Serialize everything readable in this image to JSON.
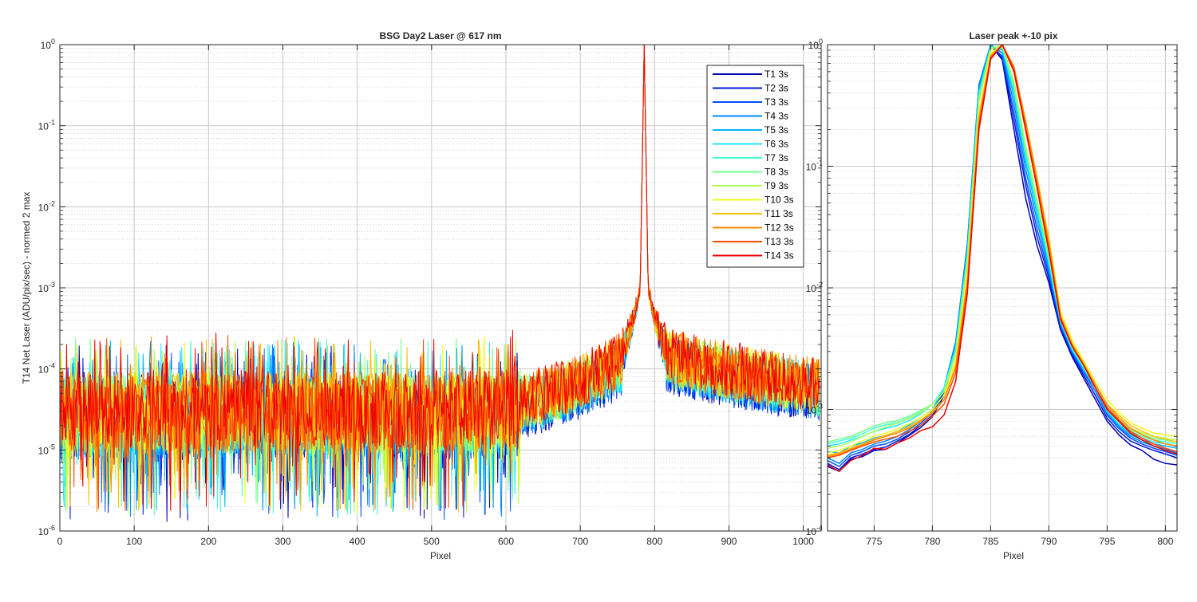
{
  "colors": {
    "series": [
      "#0000b0",
      "#0018e0",
      "#0050ff",
      "#0088ff",
      "#00b8ff",
      "#20e8ff",
      "#40ffd8",
      "#70ff90",
      "#b0ff50",
      "#f0ff20",
      "#ffc000",
      "#ff8800",
      "#ff4800",
      "#f00000"
    ],
    "grid": "#c8c8c8",
    "axis": "#262626"
  },
  "chart_data": [
    {
      "type": "line",
      "title": "BSG  Day2 Laser @ 617 nm",
      "xlabel": "Pixel",
      "ylabel": "T14 Net Laser (ADU/pix/sec) - normed 2 max",
      "yscale": "log",
      "xlim": [
        0,
        1024
      ],
      "ylim": [
        1e-06,
        1
      ],
      "xticks": [
        0,
        100,
        200,
        300,
        400,
        500,
        600,
        700,
        800,
        900,
        1000
      ],
      "xtick_labels": [
        "0",
        "100",
        "200",
        "300",
        "400",
        "500",
        "600",
        "700",
        "800",
        "900",
        "1000"
      ],
      "yticks": [
        -6,
        -5,
        -4,
        -3,
        -2,
        -1,
        0
      ],
      "ytick_labels": [
        {
          "base": "10",
          "exp": "-6"
        },
        {
          "base": "10",
          "exp": "-5"
        },
        {
          "base": "10",
          "exp": "-4"
        },
        {
          "base": "10",
          "exp": "-3"
        },
        {
          "base": "10",
          "exp": "-2"
        },
        {
          "base": "10",
          "exp": "-1"
        },
        {
          "base": "10",
          "exp": "0"
        }
      ],
      "grid": true,
      "legend_position": "top-right",
      "series_names": [
        "T1 3s",
        "T2 3s",
        "T3 3s",
        "T4 3s",
        "T5 3s",
        "T6 3s",
        "T7 3s",
        "T8 3s",
        "T9 3s",
        "T10 3s",
        "T11 3s",
        "T12 3s",
        "T13 3s",
        "T14 3s"
      ],
      "peak_pixel": 786,
      "noise_floor_description_values": {
        "left_baseline": 3.5e-05,
        "near_peak_baseline": 0.0002,
        "right_baseline": 6e-05
      }
    },
    {
      "type": "line",
      "title": "Laser peak +-10 pix",
      "xlabel": "Pixel",
      "ylabel": "",
      "yscale": "log",
      "xlim": [
        771,
        801
      ],
      "ylim": [
        0.0001,
        1
      ],
      "xticks": [
        775,
        780,
        785,
        790,
        795,
        800
      ],
      "xtick_labels": [
        "775",
        "780",
        "785",
        "790",
        "795",
        "800"
      ],
      "yticks": [
        -4,
        -3,
        -2,
        -1,
        0
      ],
      "ytick_labels": [
        {
          "base": "10",
          "exp": "-4"
        },
        {
          "base": "10",
          "exp": "-3"
        },
        {
          "base": "10",
          "exp": "-2"
        },
        {
          "base": "10",
          "exp": "-1"
        },
        {
          "base": "10",
          "exp": "0"
        }
      ],
      "grid": true,
      "x": [
        771,
        772,
        773,
        774,
        775,
        776,
        777,
        778,
        779,
        780,
        781,
        782,
        783,
        784,
        785,
        786,
        787,
        788,
        789,
        790,
        791,
        792,
        793,
        794,
        795,
        796,
        797,
        798,
        799,
        800,
        801
      ],
      "series": [
        {
          "name": "T1 3s",
          "values": [
            0.00034,
            0.00031,
            0.00039,
            0.00041,
            0.00046,
            0.00047,
            0.00053,
            0.00061,
            0.00071,
            0.00087,
            0.0013,
            0.0032,
            0.02,
            0.42,
            1.0,
            0.75,
            0.2,
            0.055,
            0.022,
            0.011,
            0.0045,
            0.0027,
            0.0018,
            0.0012,
            0.0008,
            0.00062,
            0.00051,
            0.00046,
            0.00039,
            0.00036,
            0.00035
          ]
        },
        {
          "name": "T2 3s",
          "values": [
            0.00036,
            0.00032,
            0.0004,
            0.00043,
            0.00047,
            0.00049,
            0.00055,
            0.00062,
            0.00074,
            0.0009,
            0.0014,
            0.0034,
            0.022,
            0.45,
            1.0,
            0.78,
            0.24,
            0.07,
            0.026,
            0.012,
            0.0048,
            0.0028,
            0.0019,
            0.0013,
            0.00085,
            0.00066,
            0.00055,
            0.0005,
            0.00046,
            0.00043,
            0.0004
          ]
        },
        {
          "name": "T3 3s",
          "values": [
            0.00038,
            0.00034,
            0.00042,
            0.00045,
            0.0005,
            0.00052,
            0.00057,
            0.00065,
            0.00077,
            0.00094,
            0.0015,
            0.0036,
            0.023,
            0.47,
            1.0,
            0.8,
            0.28,
            0.08,
            0.03,
            0.013,
            0.0049,
            0.0029,
            0.002,
            0.0014,
            0.0009,
            0.0007,
            0.00058,
            0.00052,
            0.00048,
            0.00045,
            0.00042
          ]
        },
        {
          "name": "T4 3s",
          "values": [
            0.0004,
            0.00036,
            0.00044,
            0.00047,
            0.00052,
            0.00055,
            0.0006,
            0.00068,
            0.0008,
            0.00097,
            0.0015,
            0.0035,
            0.022,
            0.46,
            1.0,
            0.85,
            0.33,
            0.095,
            0.035,
            0.014,
            0.005,
            0.003,
            0.0021,
            0.0014,
            0.00093,
            0.00072,
            0.0006,
            0.00054,
            0.0005,
            0.00047,
            0.00044
          ]
        },
        {
          "name": "T5 3s",
          "values": [
            0.00045,
            0.00044,
            0.0005,
            0.00053,
            0.00058,
            0.00061,
            0.00066,
            0.00074,
            0.00086,
            0.001,
            0.0015,
            0.0033,
            0.02,
            0.42,
            0.98,
            0.9,
            0.38,
            0.11,
            0.04,
            0.015,
            0.0052,
            0.0031,
            0.0021,
            0.0015,
            0.00095,
            0.00074,
            0.00062,
            0.00056,
            0.00052,
            0.0005,
            0.00048
          ]
        },
        {
          "name": "T6 3s",
          "values": [
            0.0005,
            0.00052,
            0.00056,
            0.0006,
            0.00066,
            0.0007,
            0.00074,
            0.00081,
            0.00092,
            0.0011,
            0.0015,
            0.0032,
            0.019,
            0.4,
            0.96,
            0.93,
            0.41,
            0.12,
            0.043,
            0.016,
            0.0053,
            0.0031,
            0.0022,
            0.0015,
            0.00097,
            0.00076,
            0.00064,
            0.00058,
            0.00054,
            0.00052,
            0.0005
          ]
        },
        {
          "name": "T7 3s",
          "values": [
            0.00052,
            0.00055,
            0.00058,
            0.00063,
            0.0007,
            0.00075,
            0.00078,
            0.00085,
            0.00095,
            0.0011,
            0.0015,
            0.003,
            0.018,
            0.38,
            0.95,
            0.95,
            0.44,
            0.13,
            0.046,
            0.017,
            0.0054,
            0.0032,
            0.0022,
            0.0015,
            0.001,
            0.00079,
            0.00066,
            0.0006,
            0.00056,
            0.00054,
            0.00052
          ]
        },
        {
          "name": "T8 3s",
          "values": [
            0.00054,
            0.00057,
            0.0006,
            0.00066,
            0.00073,
            0.00078,
            0.00081,
            0.00088,
            0.00098,
            0.0011,
            0.0014,
            0.0029,
            0.017,
            0.36,
            0.94,
            0.97,
            0.47,
            0.14,
            0.05,
            0.018,
            0.0055,
            0.0033,
            0.0023,
            0.0016,
            0.00105,
            0.00082,
            0.00068,
            0.00062,
            0.00058,
            0.00056,
            0.00054
          ]
        },
        {
          "name": "T9 3s",
          "values": [
            0.00048,
            0.0005,
            0.00054,
            0.0006,
            0.00066,
            0.00072,
            0.00077,
            0.00084,
            0.00094,
            0.0011,
            0.0014,
            0.0028,
            0.016,
            0.34,
            0.92,
            0.98,
            0.5,
            0.15,
            0.053,
            0.019,
            0.0056,
            0.0034,
            0.0024,
            0.0016,
            0.0011,
            0.00085,
            0.0007,
            0.00064,
            0.0006,
            0.00058,
            0.00056
          ]
        },
        {
          "name": "T10 3s",
          "values": [
            0.00044,
            0.00046,
            0.0005,
            0.00055,
            0.0006,
            0.00064,
            0.00069,
            0.00076,
            0.00086,
            0.001,
            0.0013,
            0.0025,
            0.013,
            0.28,
            0.85,
            1.0,
            0.62,
            0.22,
            0.075,
            0.026,
            0.0065,
            0.0037,
            0.0025,
            0.0017,
            0.0012,
            0.00095,
            0.00078,
            0.0007,
            0.00064,
            0.00062,
            0.0006
          ]
        },
        {
          "name": "T11 3s",
          "values": [
            0.00042,
            0.00044,
            0.00048,
            0.00052,
            0.00057,
            0.00061,
            0.00066,
            0.00072,
            0.00082,
            0.00096,
            0.0012,
            0.0023,
            0.012,
            0.26,
            0.82,
            1.0,
            0.65,
            0.24,
            0.08,
            0.025,
            0.006,
            0.0035,
            0.0024,
            0.0016,
            0.0011,
            0.0009,
            0.00074,
            0.00066,
            0.0006,
            0.00057,
            0.00054
          ]
        },
        {
          "name": "T12 3s",
          "values": [
            0.00041,
            0.00043,
            0.00047,
            0.00051,
            0.00056,
            0.0006,
            0.00064,
            0.0007,
            0.0008,
            0.00093,
            0.0012,
            0.0022,
            0.011,
            0.24,
            0.8,
            1.0,
            0.66,
            0.23,
            0.075,
            0.023,
            0.0058,
            0.0034,
            0.0023,
            0.0016,
            0.0011,
            0.00086,
            0.0007,
            0.00062,
            0.00056,
            0.00052,
            0.0005
          ]
        },
        {
          "name": "T13 3s",
          "values": [
            0.0004,
            0.00042,
            0.00046,
            0.0005,
            0.00054,
            0.00057,
            0.0006,
            0.00066,
            0.00074,
            0.00088,
            0.0011,
            0.002,
            0.01,
            0.22,
            0.78,
            1.0,
            0.64,
            0.21,
            0.068,
            0.021,
            0.0056,
            0.0033,
            0.0023,
            0.0015,
            0.00104,
            0.00082,
            0.00066,
            0.00058,
            0.00052,
            0.00048,
            0.00045
          ]
        },
        {
          "name": "T14 3s",
          "values": [
            0.00035,
            0.00031,
            0.00038,
            0.00042,
            0.00048,
            0.00047,
            0.00053,
            0.00058,
            0.00067,
            0.00072,
            0.0009,
            0.0017,
            0.009,
            0.2,
            0.76,
            1.0,
            0.6,
            0.2,
            0.065,
            0.02,
            0.0055,
            0.0033,
            0.0023,
            0.0015,
            0.001,
            0.0008,
            0.00064,
            0.00056,
            0.0005,
            0.00046,
            0.00043
          ]
        }
      ]
    }
  ]
}
